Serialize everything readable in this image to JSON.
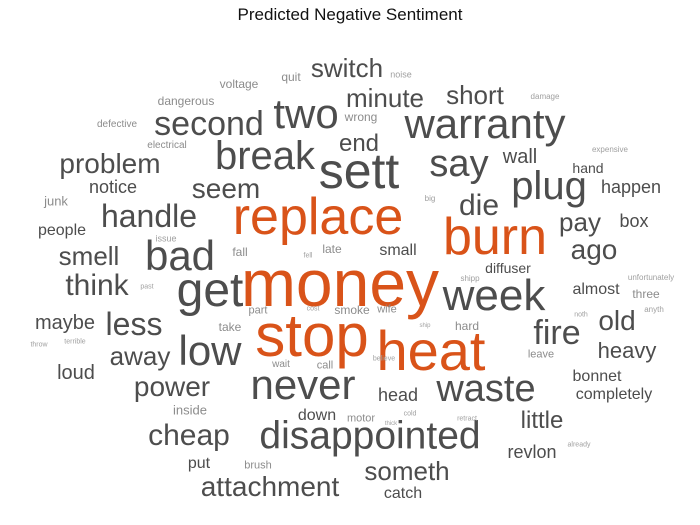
{
  "title": "Predicted Negative Sentiment",
  "colors": {
    "highlight": "#d95319",
    "primary": "#4d4d4d",
    "light": "#8c8c8c",
    "faint": "#a0a0a0"
  },
  "words": [
    {
      "text": "money",
      "tone": "highlight"
    },
    {
      "text": "replace",
      "tone": "highlight"
    },
    {
      "text": "stop",
      "tone": "highlight"
    },
    {
      "text": "heat",
      "tone": "highlight"
    },
    {
      "text": "burn",
      "tone": "highlight"
    },
    {
      "text": "never",
      "tone": "primary"
    },
    {
      "text": "sett",
      "tone": "primary"
    },
    {
      "text": "disappointed",
      "tone": "primary"
    },
    {
      "text": "get",
      "tone": "primary"
    },
    {
      "text": "week",
      "tone": "primary"
    },
    {
      "text": "warranty",
      "tone": "primary"
    },
    {
      "text": "break",
      "tone": "primary"
    },
    {
      "text": "waste",
      "tone": "primary"
    },
    {
      "text": "plug",
      "tone": "primary"
    },
    {
      "text": "low",
      "tone": "primary"
    },
    {
      "text": "two",
      "tone": "primary"
    },
    {
      "text": "bad",
      "tone": "primary"
    },
    {
      "text": "say",
      "tone": "primary"
    },
    {
      "text": "second",
      "tone": "primary"
    },
    {
      "text": "handle",
      "tone": "primary"
    },
    {
      "text": "fire",
      "tone": "primary"
    },
    {
      "text": "cheap",
      "tone": "primary"
    },
    {
      "text": "power",
      "tone": "primary"
    },
    {
      "text": "attachment",
      "tone": "primary"
    },
    {
      "text": "less",
      "tone": "primary"
    },
    {
      "text": "problem",
      "tone": "primary"
    },
    {
      "text": "seem",
      "tone": "primary"
    },
    {
      "text": "die",
      "tone": "primary"
    },
    {
      "text": "switch",
      "tone": "primary"
    },
    {
      "text": "minute",
      "tone": "primary"
    },
    {
      "text": "think",
      "tone": "primary"
    },
    {
      "text": "old",
      "tone": "primary"
    },
    {
      "text": "someth",
      "tone": "primary"
    },
    {
      "text": "short",
      "tone": "primary"
    },
    {
      "text": "away",
      "tone": "primary"
    },
    {
      "text": "smell",
      "tone": "primary"
    },
    {
      "text": "ago",
      "tone": "primary"
    },
    {
      "text": "pay",
      "tone": "primary"
    },
    {
      "text": "end",
      "tone": "primary"
    },
    {
      "text": "little",
      "tone": "primary"
    },
    {
      "text": "heavy",
      "tone": "primary"
    },
    {
      "text": "maybe",
      "tone": "primary"
    },
    {
      "text": "loud",
      "tone": "primary"
    },
    {
      "text": "wall",
      "tone": "primary"
    },
    {
      "text": "notice",
      "tone": "primary"
    },
    {
      "text": "happen",
      "tone": "primary"
    },
    {
      "text": "box",
      "tone": "primary"
    },
    {
      "text": "head",
      "tone": "primary"
    },
    {
      "text": "revlon",
      "tone": "primary"
    },
    {
      "text": "down",
      "tone": "primary"
    },
    {
      "text": "put",
      "tone": "primary"
    },
    {
      "text": "catch",
      "tone": "primary"
    },
    {
      "text": "bonnet",
      "tone": "primary"
    },
    {
      "text": "completely",
      "tone": "primary"
    },
    {
      "text": "almost",
      "tone": "primary"
    },
    {
      "text": "diffuser",
      "tone": "primary"
    },
    {
      "text": "small",
      "tone": "primary"
    },
    {
      "text": "people",
      "tone": "primary"
    },
    {
      "text": "hand",
      "tone": "primary"
    },
    {
      "text": "three",
      "tone": "light"
    },
    {
      "text": "junk",
      "tone": "light"
    },
    {
      "text": "inside",
      "tone": "light"
    },
    {
      "text": "quit",
      "tone": "light"
    },
    {
      "text": "voltage",
      "tone": "light"
    },
    {
      "text": "dangerous",
      "tone": "light"
    },
    {
      "text": "wrong",
      "tone": "light"
    },
    {
      "text": "defective",
      "tone": "light"
    },
    {
      "text": "electrical",
      "tone": "light"
    },
    {
      "text": "late",
      "tone": "light"
    },
    {
      "text": "fall",
      "tone": "light"
    },
    {
      "text": "take",
      "tone": "light"
    },
    {
      "text": "hard",
      "tone": "light"
    },
    {
      "text": "leave",
      "tone": "light"
    },
    {
      "text": "smoke",
      "tone": "light"
    },
    {
      "text": "wife",
      "tone": "light"
    },
    {
      "text": "part",
      "tone": "light"
    },
    {
      "text": "call",
      "tone": "light"
    },
    {
      "text": "wait",
      "tone": "light"
    },
    {
      "text": "motor",
      "tone": "light"
    },
    {
      "text": "brush",
      "tone": "light"
    },
    {
      "text": "issue",
      "tone": "faint"
    },
    {
      "text": "noise",
      "tone": "faint"
    },
    {
      "text": "damage",
      "tone": "faint"
    },
    {
      "text": "expensive",
      "tone": "faint"
    },
    {
      "text": "big",
      "tone": "faint"
    },
    {
      "text": "shipp",
      "tone": "faint"
    },
    {
      "text": "unfortunately",
      "tone": "faint"
    },
    {
      "text": "anyth",
      "tone": "faint"
    },
    {
      "text": "noth",
      "tone": "faint"
    },
    {
      "text": "past",
      "tone": "faint"
    },
    {
      "text": "cost",
      "tone": "faint"
    },
    {
      "text": "fell",
      "tone": "faint"
    },
    {
      "text": "ship",
      "tone": "faint"
    },
    {
      "text": "believe",
      "tone": "faint"
    },
    {
      "text": "cold",
      "tone": "faint"
    },
    {
      "text": "thick",
      "tone": "faint"
    },
    {
      "text": "retract",
      "tone": "faint"
    },
    {
      "text": "already",
      "tone": "faint"
    },
    {
      "text": "terrible",
      "tone": "faint"
    },
    {
      "text": "throw",
      "tone": "faint"
    }
  ]
}
